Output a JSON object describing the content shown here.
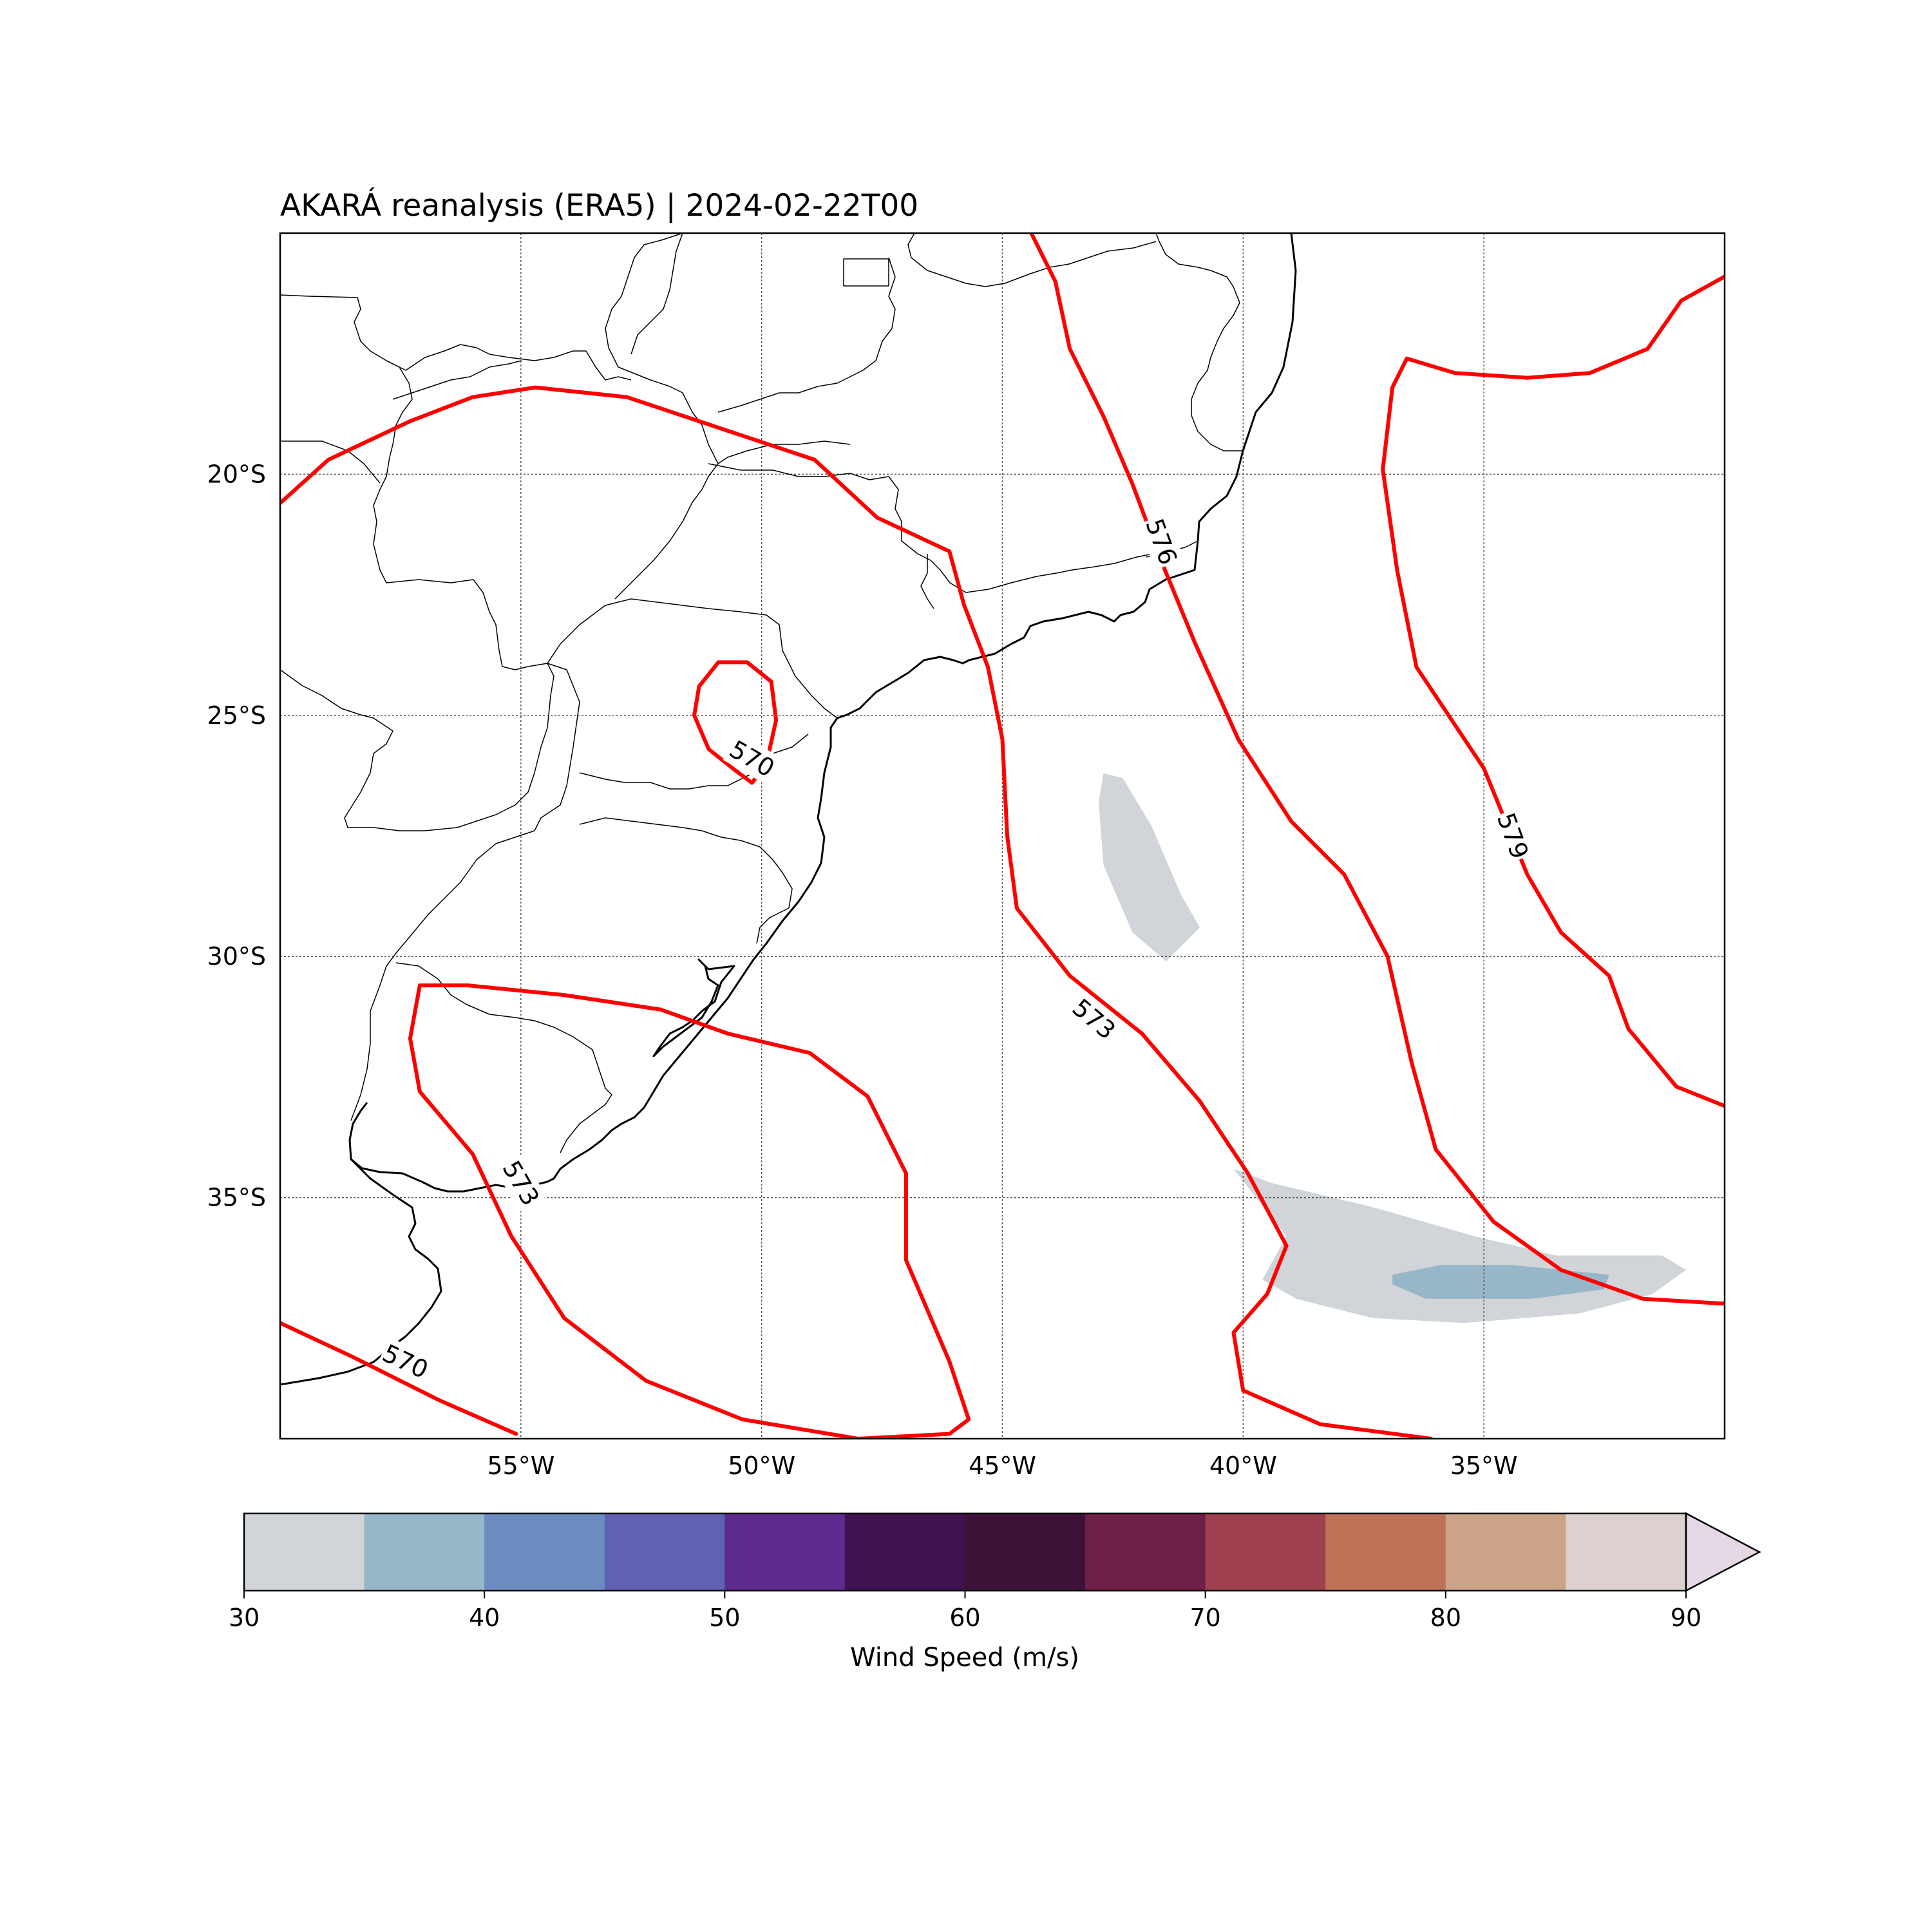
{
  "title": "AKARÁ reanalysis (ERA5) | 2024-02-22T00",
  "map": {
    "lon_range": [
      -60,
      -30
    ],
    "lat_range": [
      -40,
      -15
    ],
    "lon_ticks": [
      {
        "value": -55,
        "label": "55°W"
      },
      {
        "value": -50,
        "label": "50°W"
      },
      {
        "value": -45,
        "label": "45°W"
      },
      {
        "value": -40,
        "label": "40°W"
      },
      {
        "value": -35,
        "label": "35°W"
      }
    ],
    "lat_ticks": [
      {
        "value": -20,
        "label": "20°S"
      },
      {
        "value": -25,
        "label": "25°S"
      },
      {
        "value": -30,
        "label": "30°S"
      },
      {
        "value": -35,
        "label": "35°S"
      }
    ],
    "gridlines": true,
    "coastline_color": "#000000",
    "contour_color": "#ff0000"
  },
  "chart_data": {
    "type": "contour",
    "contour_labels": [
      {
        "label": "576",
        "lon": -41.7,
        "lat": -21.4
      },
      {
        "label": "579",
        "lon": -34.4,
        "lat": -27.5
      },
      {
        "label": "570",
        "lon": -50.2,
        "lat": -25.9
      },
      {
        "label": "573",
        "lon": -43.1,
        "lat": -31.3
      },
      {
        "label": "573",
        "lon": -55.0,
        "lat": -34.7
      },
      {
        "label": "570",
        "lon": -57.4,
        "lat": -38.4
      }
    ],
    "contours": [
      {
        "level": 576,
        "points": [
          [
            -44.4,
            -15
          ],
          [
            -43.9,
            -16
          ],
          [
            -43.6,
            -17.4
          ],
          [
            -42.9,
            -18.8
          ],
          [
            -42.3,
            -20.2
          ],
          [
            -41.7,
            -21.8
          ],
          [
            -41.0,
            -23.5
          ],
          [
            -40.1,
            -25.5
          ],
          [
            -39.0,
            -27.2
          ],
          [
            -37.9,
            -28.3
          ],
          [
            -37.0,
            -30.0
          ],
          [
            -36.5,
            -32.2
          ],
          [
            -36.0,
            -34.0
          ],
          [
            -34.8,
            -35.5
          ],
          [
            -33.4,
            -36.5
          ],
          [
            -31.7,
            -37.1
          ],
          [
            -30,
            -37.2
          ]
        ]
      },
      {
        "level": 579,
        "points": [
          [
            -30,
            -15.9
          ],
          [
            -30.9,
            -16.4
          ],
          [
            -31.6,
            -17.4
          ],
          [
            -32.8,
            -17.9
          ],
          [
            -34.1,
            -18.0
          ],
          [
            -35.6,
            -17.9
          ],
          [
            -36.6,
            -17.6
          ],
          [
            -36.9,
            -18.2
          ],
          [
            -37.1,
            -19.9
          ],
          [
            -36.8,
            -22.0
          ],
          [
            -36.4,
            -24.0
          ],
          [
            -35.0,
            -26.1
          ],
          [
            -34.1,
            -28.3
          ],
          [
            -33.4,
            -29.5
          ],
          [
            -32.4,
            -30.4
          ],
          [
            -32.0,
            -31.5
          ],
          [
            -31.0,
            -32.7
          ],
          [
            -30,
            -33.1
          ]
        ]
      },
      {
        "level": 570,
        "points": [
          [
            -51.4,
            -25.0
          ],
          [
            -51.3,
            -24.4
          ],
          [
            -50.9,
            -23.9
          ],
          [
            -50.3,
            -23.9
          ],
          [
            -49.8,
            -24.3
          ],
          [
            -49.7,
            -25.1
          ],
          [
            -49.9,
            -26.0
          ],
          [
            -50.2,
            -26.4
          ],
          [
            -50.6,
            -26.1
          ],
          [
            -51.1,
            -25.7
          ],
          [
            -51.4,
            -25.0
          ]
        ]
      },
      {
        "level": 573,
        "points": [
          [
            -60,
            -20.6
          ],
          [
            -59.0,
            -19.7
          ],
          [
            -57.3,
            -18.9
          ],
          [
            -56.0,
            -18.4
          ],
          [
            -54.7,
            -18.2
          ],
          [
            -52.8,
            -18.4
          ],
          [
            -50.7,
            -19.1
          ],
          [
            -48.9,
            -19.7
          ],
          [
            -47.6,
            -20.9
          ],
          [
            -46.1,
            -21.6
          ],
          [
            -45.8,
            -22.7
          ],
          [
            -45.3,
            -24.0
          ],
          [
            -45.0,
            -25.5
          ],
          [
            -44.9,
            -27.5
          ],
          [
            -44.7,
            -29.0
          ],
          [
            -43.6,
            -30.4
          ],
          [
            -42.1,
            -31.6
          ],
          [
            -40.9,
            -33.0
          ],
          [
            -39.9,
            -34.5
          ],
          [
            -39.1,
            -36.0
          ],
          [
            -39.5,
            -37.0
          ],
          [
            -40.2,
            -37.8
          ],
          [
            -40.0,
            -39.0
          ],
          [
            -38.4,
            -39.7
          ],
          [
            -36.1,
            -40
          ]
        ]
      },
      {
        "level": 573,
        "points": [
          [
            -57.1,
            -30.6
          ],
          [
            -56.1,
            -30.6
          ],
          [
            -54.1,
            -30.8
          ],
          [
            -52.1,
            -31.1
          ],
          [
            -50.7,
            -31.6
          ],
          [
            -49.0,
            -32.0
          ],
          [
            -47.8,
            -32.9
          ],
          [
            -47.0,
            -34.5
          ],
          [
            -47.0,
            -36.3
          ],
          [
            -46.1,
            -38.4
          ],
          [
            -45.7,
            -39.6
          ],
          [
            -46.1,
            -39.9
          ],
          [
            -48.0,
            -40.0
          ],
          [
            -50.4,
            -39.6
          ],
          [
            -52.4,
            -38.8
          ],
          [
            -54.1,
            -37.5
          ],
          [
            -55.2,
            -35.8
          ],
          [
            -56.0,
            -34.1
          ],
          [
            -57.1,
            -32.8
          ],
          [
            -57.3,
            -31.7
          ],
          [
            -57.1,
            -30.6
          ]
        ]
      },
      {
        "level": 570,
        "points": [
          [
            -60,
            -37.6
          ],
          [
            -58.5,
            -38.3
          ],
          [
            -56.7,
            -39.2
          ],
          [
            -55.1,
            -39.9
          ]
        ]
      }
    ],
    "shaded": [
      {
        "range": "30-35",
        "color": "#d1d4d9",
        "points": [
          [
            -42.9,
            -26.2
          ],
          [
            -42.5,
            -26.3
          ],
          [
            -41.9,
            -27.3
          ],
          [
            -41.3,
            -28.7
          ],
          [
            -40.9,
            -29.4
          ],
          [
            -41.6,
            -30.1
          ],
          [
            -42.3,
            -29.5
          ],
          [
            -42.9,
            -28.1
          ],
          [
            -43.0,
            -26.8
          ],
          [
            -42.9,
            -26.2
          ]
        ]
      },
      {
        "range": "30-35",
        "color": "#d1d4d9",
        "points": [
          [
            -40.2,
            -34.4
          ],
          [
            -39.4,
            -34.7
          ],
          [
            -37.3,
            -35.2
          ],
          [
            -35.2,
            -35.8
          ],
          [
            -33.5,
            -36.2
          ],
          [
            -31.3,
            -36.2
          ],
          [
            -30.8,
            -36.5
          ],
          [
            -31.5,
            -37.0
          ],
          [
            -33.0,
            -37.4
          ],
          [
            -35.4,
            -37.6
          ],
          [
            -37.3,
            -37.5
          ],
          [
            -38.9,
            -37.1
          ],
          [
            -39.6,
            -36.7
          ],
          [
            -39.1,
            -35.8
          ],
          [
            -40.2,
            -34.4
          ]
        ]
      },
      {
        "range": "35-40",
        "color": "#97b6c7",
        "points": [
          [
            -36.9,
            -36.6
          ],
          [
            -35.9,
            -36.4
          ],
          [
            -34.4,
            -36.4
          ],
          [
            -32.4,
            -36.6
          ],
          [
            -32.5,
            -36.9
          ],
          [
            -34.0,
            -37.1
          ],
          [
            -36.2,
            -37.1
          ],
          [
            -36.9,
            -36.8
          ],
          [
            -36.9,
            -36.6
          ]
        ]
      }
    ]
  },
  "colorbar": {
    "label": "Wind Speed (m/s)",
    "min": 30,
    "max": 90,
    "tick_values": [
      "30",
      "40",
      "50",
      "60",
      "70",
      "80",
      "90"
    ],
    "colors": [
      "#d1d4d9",
      "#97b6c7",
      "#6c8cc0",
      "#6061b2",
      "#5d2b8d",
      "#3f1250",
      "#3e1238",
      "#6f1f48",
      "#9f3f50",
      "#bf7258",
      "#cba387",
      "#dcd1cf"
    ],
    "extend_color": "#e3d8e4",
    "extend": "max"
  }
}
